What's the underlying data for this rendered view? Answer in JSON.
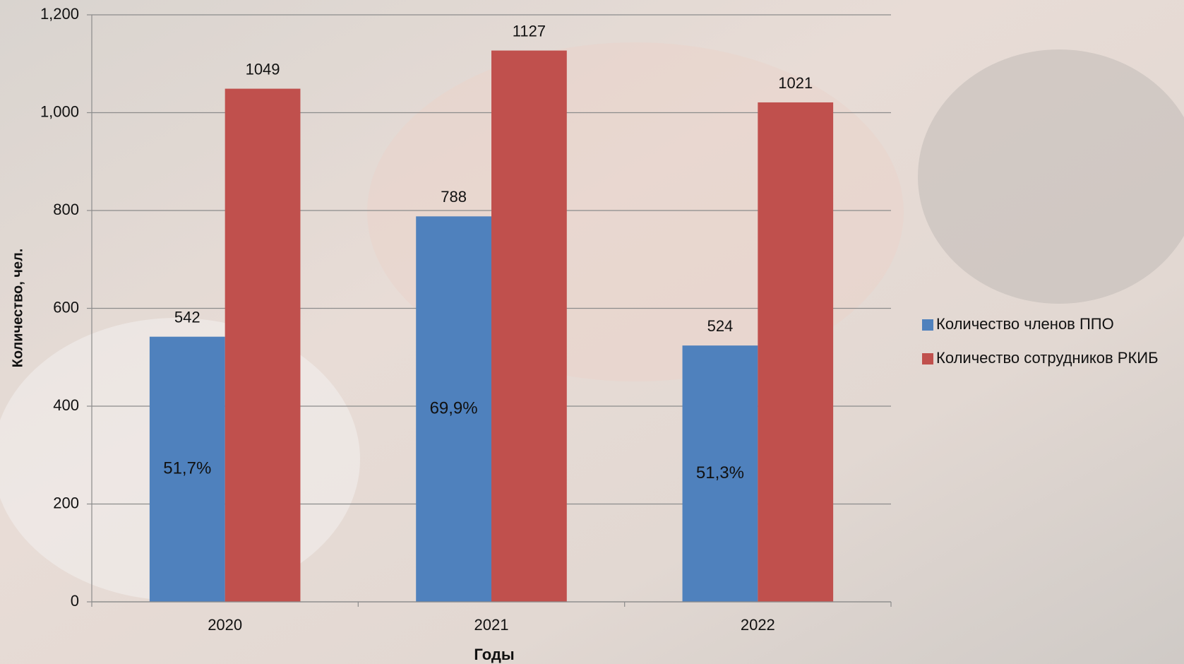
{
  "chart_data": {
    "type": "bar",
    "x_label": "Годы",
    "y_label": "Количество, чел.",
    "categories": [
      "2020",
      "2021",
      "2022"
    ],
    "series": [
      {
        "name": "Количество членов ППО",
        "color": "#4f81bd",
        "values": [
          542,
          788,
          524
        ]
      },
      {
        "name": "Количество сотрудников РКИБ",
        "color": "#c0504d",
        "values": [
          1049,
          1127,
          1021
        ]
      }
    ],
    "annotations": [
      "51,7%",
      "69,9%",
      "51,3%"
    ],
    "ylim": [
      0,
      1200
    ],
    "yticks": [
      0,
      200,
      400,
      600,
      800,
      {
        "value": 1000,
        "label": "1,000"
      },
      {
        "value": 1200,
        "label": "1,200"
      }
    ],
    "grid": true,
    "legend": "right"
  }
}
